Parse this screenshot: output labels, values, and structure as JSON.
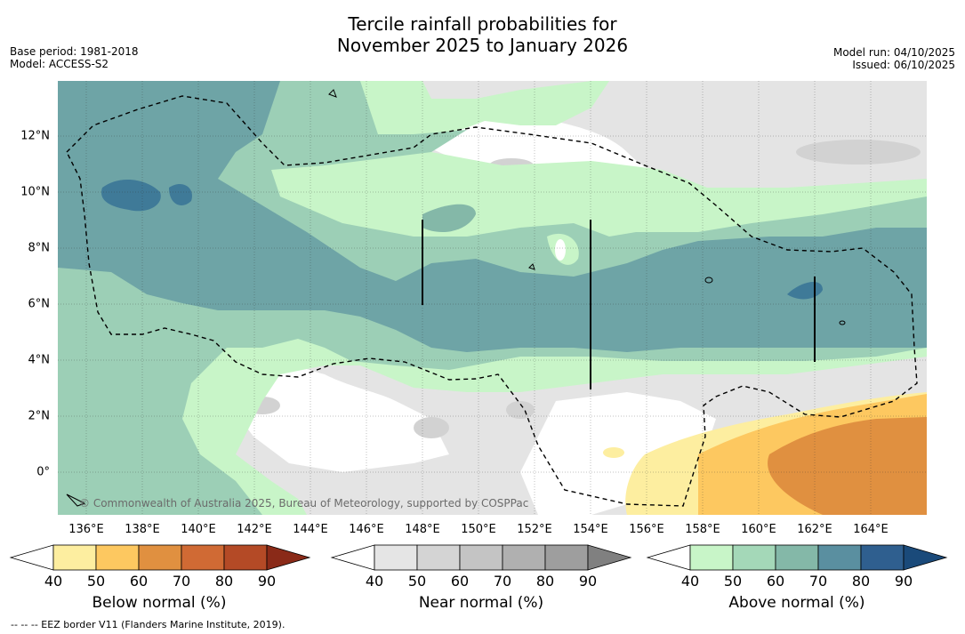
{
  "title": {
    "line1": "Tercile rainfall probabilities for",
    "line2": "November 2025 to January 2026"
  },
  "meta_left": {
    "base_period": "Base period: 1981-2018",
    "model": "Model: ACCESS-S2"
  },
  "meta_right": {
    "model_run": "Model run: 04/10/2025",
    "issued": "Issued: 06/10/2025"
  },
  "axes": {
    "lon_labels": [
      "136°E",
      "138°E",
      "140°E",
      "142°E",
      "144°E",
      "146°E",
      "148°E",
      "150°E",
      "152°E",
      "154°E",
      "156°E",
      "158°E",
      "160°E",
      "162°E",
      "164°E"
    ],
    "lat_labels": [
      "12°N",
      "10°N",
      "8°N",
      "6°N",
      "4°N",
      "2°N",
      "0°"
    ],
    "lon_range": [
      135.0,
      166.0
    ],
    "lat_range": [
      -1.5,
      14.0
    ]
  },
  "credit": "© Commonwealth of Australia 2025, Bureau of Meteorology, supported by COSPPac",
  "footnote": "-- -- -- EEZ border V11 (Flanders Marine Institute, 2019).",
  "colorbars": [
    {
      "title": "Below normal (%)",
      "ticks": [
        "40",
        "50",
        "60",
        "70",
        "80",
        "90"
      ],
      "colors": [
        "#fdeea0",
        "#fdc860",
        "#e09040",
        "#d06a34",
        "#b44a26",
        "#8a2a18"
      ],
      "low": "#ffffff"
    },
    {
      "title": "Near normal (%)",
      "ticks": [
        "40",
        "50",
        "60",
        "70",
        "80",
        "90"
      ],
      "colors": [
        "#e5e5e5",
        "#d4d4d4",
        "#c4c4c4",
        "#b0b0b0",
        "#9e9e9e",
        "#808080"
      ],
      "low": "#ffffff"
    },
    {
      "title": "Above normal (%)",
      "ticks": [
        "40",
        "50",
        "60",
        "70",
        "80",
        "90"
      ],
      "colors": [
        "#c8f5c8",
        "#a4d8b8",
        "#84b8a8",
        "#5a8fa0",
        "#2f5f8f",
        "#1a4a7a"
      ],
      "low": "#ffffff"
    }
  ],
  "colors": {
    "above_40": "#c8f5c8",
    "above_50": "#9ccfb6",
    "above_60": "#6ea4a6",
    "above_70": "#3f7a98",
    "near_40": "#e4e4e4",
    "near_50": "#d2d2d2",
    "below_40": "#fdeea0",
    "below_50": "#fdc860",
    "below_60": "#e09040"
  }
}
